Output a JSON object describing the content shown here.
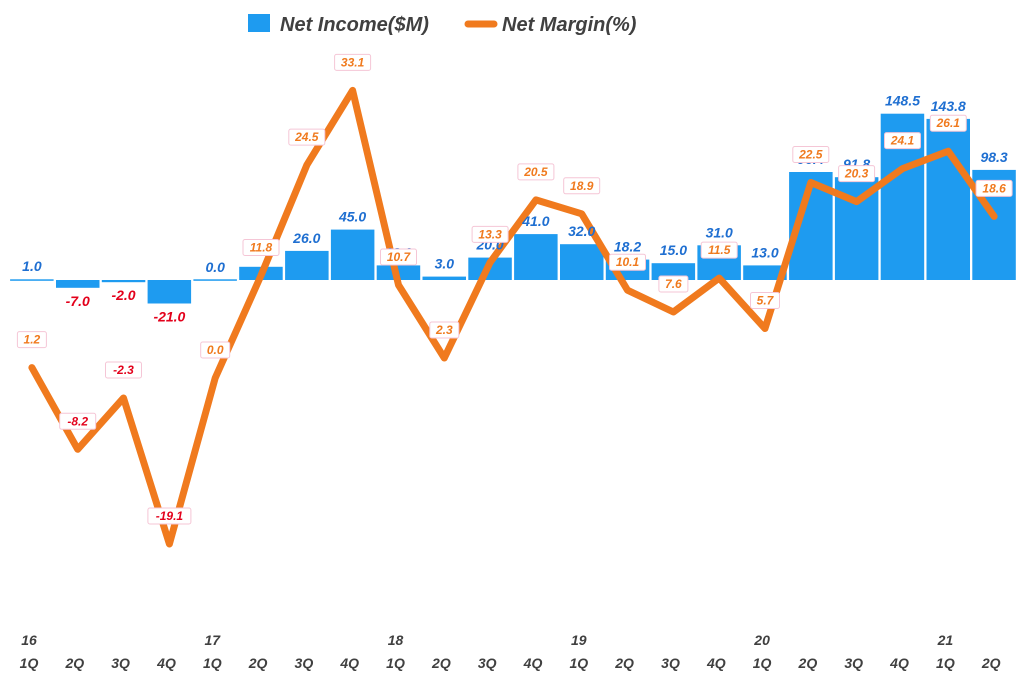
{
  "chart_data": {
    "type": "bar",
    "title": "",
    "xlabel": "",
    "ylabel": "",
    "legend_position": "top",
    "year_labels": [
      "16",
      "",
      "",
      "",
      "17",
      "",
      "",
      "",
      "18",
      "",
      "",
      "",
      "19",
      "",
      "",
      "",
      "20",
      "",
      "",
      "",
      "21",
      ""
    ],
    "categories": [
      "1Q",
      "2Q",
      "3Q",
      "4Q",
      "1Q",
      "2Q",
      "3Q",
      "4Q",
      "1Q",
      "2Q",
      "3Q",
      "4Q",
      "1Q",
      "2Q",
      "3Q",
      "4Q",
      "1Q",
      "2Q",
      "3Q",
      "4Q",
      "1Q",
      "2Q"
    ],
    "series": [
      {
        "name": "Net Income($M)",
        "type": "bar",
        "color": "#1E9BF0",
        "positive_label_color": "#1F6FD1",
        "negative_label_color": "#E3001B",
        "values": [
          1.0,
          -7.0,
          -2.0,
          -21.0,
          0.0,
          11.8,
          26.0,
          45.0,
          13.0,
          3.0,
          20.0,
          41.0,
          32.0,
          18.2,
          15.0,
          31.0,
          13.0,
          96.4,
          91.8,
          148.5,
          143.8,
          98.3
        ],
        "labels": [
          "1.0",
          "-7.0",
          "-2.0",
          "-21.0",
          "0.0",
          "",
          "26.0",
          "45.0",
          "13.0",
          "3.0",
          "20.0",
          "41.0",
          "32.0",
          "18.2",
          "15.0",
          "31.0",
          "13.0",
          "96.4",
          "91.8",
          "148.5",
          "143.8",
          "98.3"
        ],
        "ylim": [
          -235,
          150
        ]
      },
      {
        "name": "Net Margin(%)",
        "type": "line",
        "color": "#F07A1E",
        "positive_label_color": "#F07A1E",
        "negative_label_color": "#E3001B",
        "values": [
          1.2,
          -8.2,
          -2.3,
          -19.1,
          0.0,
          11.8,
          24.5,
          33.1,
          10.7,
          2.3,
          13.3,
          20.5,
          18.9,
          10.1,
          7.6,
          11.5,
          5.7,
          22.5,
          20.3,
          24.1,
          26.1,
          18.6
        ],
        "labels": [
          "1.2",
          "-8.2",
          "-2.3",
          "-19.1",
          "0.0",
          "11.8",
          "24.5",
          "33.1",
          "10.7",
          "2.3",
          "13.3",
          "20.5",
          "18.9",
          "10.1",
          "7.6",
          "11.5",
          "5.7",
          "22.5",
          "20.3",
          "24.1",
          "26.1",
          "18.6"
        ],
        "ylim": [
          -25,
          40
        ]
      }
    ]
  }
}
